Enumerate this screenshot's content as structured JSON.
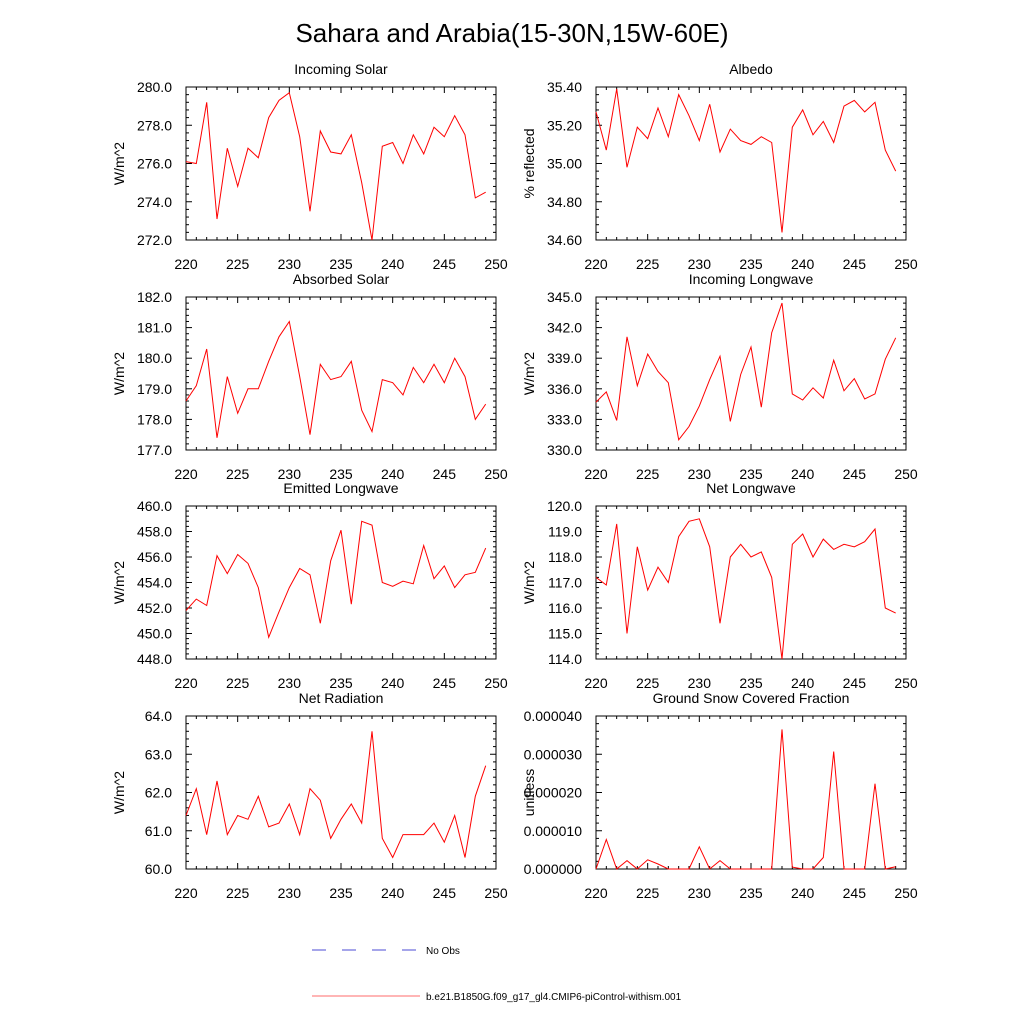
{
  "title": "Sahara and Arabia(15-30N,15W-60E)",
  "legend": [
    {
      "label": "No Obs",
      "color": "#4b4bd6",
      "dash": true
    },
    {
      "label": "b.e21.B1850G.f09_g17_gl4.CMIP6-piControl-withism.001",
      "color": "#ff3b3b",
      "dash": false
    }
  ],
  "chart_data": [
    {
      "type": "line",
      "title": "Incoming Solar",
      "ylabel": "W/m^2",
      "xlim": [
        220,
        250
      ],
      "ylim": [
        272,
        280
      ],
      "xticks": [
        "220",
        "225",
        "230",
        "235",
        "240",
        "245",
        "250"
      ],
      "yticks": [
        "272.0",
        "274.0",
        "276.0",
        "278.0",
        "280.0"
      ],
      "series": [
        {
          "color": "#ff0000",
          "x": [
            220,
            221,
            222,
            223,
            224,
            225,
            226,
            227,
            228,
            229,
            230,
            231,
            232,
            233,
            234,
            235,
            236,
            237,
            238,
            239,
            240,
            241,
            242,
            243,
            244,
            245,
            246,
            247,
            248,
            249
          ],
          "y": [
            276.1,
            276.0,
            279.2,
            273.1,
            276.8,
            274.8,
            276.8,
            276.3,
            278.4,
            279.3,
            279.7,
            277.4,
            273.5,
            277.7,
            276.6,
            276.5,
            277.5,
            275.0,
            272.0,
            276.9,
            277.1,
            276.0,
            277.5,
            276.5,
            277.9,
            277.4,
            278.5,
            277.5,
            274.2,
            274.5
          ]
        }
      ]
    },
    {
      "type": "line",
      "title": "Albedo",
      "ylabel": "% reflected",
      "xlim": [
        220,
        250
      ],
      "ylim": [
        34.6,
        35.4
      ],
      "xticks": [
        "220",
        "225",
        "230",
        "235",
        "240",
        "245",
        "250"
      ],
      "yticks": [
        "34.60",
        "34.80",
        "35.00",
        "35.20",
        "35.40"
      ],
      "series": [
        {
          "color": "#ff0000",
          "x": [
            220,
            221,
            222,
            223,
            224,
            225,
            226,
            227,
            228,
            229,
            230,
            231,
            232,
            233,
            234,
            235,
            236,
            237,
            238,
            239,
            240,
            241,
            242,
            243,
            244,
            245,
            246,
            247,
            248,
            249
          ],
          "y": [
            35.27,
            35.07,
            35.39,
            34.98,
            35.19,
            35.13,
            35.29,
            35.14,
            35.36,
            35.25,
            35.12,
            35.31,
            35.06,
            35.18,
            35.12,
            35.1,
            35.14,
            35.11,
            34.64,
            35.19,
            35.28,
            35.15,
            35.22,
            35.11,
            35.3,
            35.33,
            35.27,
            35.32,
            35.07,
            34.96
          ]
        }
      ]
    },
    {
      "type": "line",
      "title": "Absorbed Solar",
      "ylabel": "W/m^2",
      "xlim": [
        220,
        250
      ],
      "ylim": [
        177,
        182
      ],
      "xticks": [
        "220",
        "225",
        "230",
        "235",
        "240",
        "245",
        "250"
      ],
      "yticks": [
        "177.0",
        "178.0",
        "179.0",
        "180.0",
        "181.0",
        "182.0"
      ],
      "series": [
        {
          "color": "#ff0000",
          "x": [
            220,
            221,
            222,
            223,
            224,
            225,
            226,
            227,
            228,
            229,
            230,
            231,
            232,
            233,
            234,
            235,
            236,
            237,
            238,
            239,
            240,
            241,
            242,
            243,
            244,
            245,
            246,
            247,
            248,
            249
          ],
          "y": [
            178.6,
            179.1,
            180.3,
            177.4,
            179.4,
            178.2,
            179.0,
            179.0,
            179.9,
            180.7,
            181.2,
            179.4,
            177.5,
            179.8,
            179.3,
            179.4,
            179.9,
            178.3,
            177.6,
            179.3,
            179.2,
            178.8,
            179.7,
            179.2,
            179.8,
            179.2,
            180.0,
            179.4,
            178.0,
            178.5
          ]
        }
      ]
    },
    {
      "type": "line",
      "title": "Incoming Longwave",
      "ylabel": "W/m^2",
      "xlim": [
        220,
        250
      ],
      "ylim": [
        330,
        345
      ],
      "xticks": [
        "220",
        "225",
        "230",
        "235",
        "240",
        "245",
        "250"
      ],
      "yticks": [
        "330.0",
        "333.0",
        "336.0",
        "339.0",
        "342.0",
        "345.0"
      ],
      "series": [
        {
          "color": "#ff0000",
          "x": [
            220,
            221,
            222,
            223,
            224,
            225,
            226,
            227,
            228,
            229,
            230,
            231,
            232,
            233,
            234,
            235,
            236,
            237,
            238,
            239,
            240,
            241,
            242,
            243,
            244,
            245,
            246,
            247,
            248,
            249
          ],
          "y": [
            334.7,
            335.7,
            332.9,
            341.1,
            336.3,
            339.4,
            337.7,
            336.6,
            331.0,
            332.3,
            334.3,
            336.9,
            339.2,
            332.8,
            337.4,
            340.1,
            334.2,
            341.5,
            344.4,
            335.5,
            334.9,
            336.1,
            335.1,
            338.8,
            335.8,
            337.0,
            335.0,
            335.5,
            338.9,
            341.0
          ]
        }
      ]
    },
    {
      "type": "line",
      "title": "Emitted Longwave",
      "ylabel": "W/m^2",
      "xlim": [
        220,
        250
      ],
      "ylim": [
        448,
        460
      ],
      "xticks": [
        "220",
        "225",
        "230",
        "235",
        "240",
        "245",
        "250"
      ],
      "yticks": [
        "448.0",
        "450.0",
        "452.0",
        "454.0",
        "456.0",
        "458.0",
        "460.0"
      ],
      "series": [
        {
          "color": "#ff0000",
          "x": [
            220,
            221,
            222,
            223,
            224,
            225,
            226,
            227,
            228,
            229,
            230,
            231,
            232,
            233,
            234,
            235,
            236,
            237,
            238,
            239,
            240,
            241,
            242,
            243,
            244,
            245,
            246,
            247,
            248,
            249
          ],
          "y": [
            451.8,
            452.7,
            452.2,
            456.1,
            454.7,
            456.2,
            455.5,
            453.6,
            449.7,
            451.7,
            453.6,
            455.1,
            454.6,
            450.8,
            455.7,
            458.1,
            452.3,
            458.8,
            458.5,
            454.0,
            453.7,
            454.1,
            453.9,
            456.9,
            454.3,
            455.3,
            453.6,
            454.6,
            454.8,
            456.7
          ]
        }
      ]
    },
    {
      "type": "line",
      "title": "Net Longwave",
      "ylabel": "W/m^2",
      "xlim": [
        220,
        250
      ],
      "ylim": [
        114,
        120
      ],
      "xticks": [
        "220",
        "225",
        "230",
        "235",
        "240",
        "245",
        "250"
      ],
      "yticks": [
        "114.0",
        "115.0",
        "116.0",
        "117.0",
        "118.0",
        "119.0",
        "120.0"
      ],
      "series": [
        {
          "color": "#ff0000",
          "x": [
            220,
            221,
            222,
            223,
            224,
            225,
            226,
            227,
            228,
            229,
            230,
            231,
            232,
            233,
            234,
            235,
            236,
            237,
            238,
            239,
            240,
            241,
            242,
            243,
            244,
            245,
            246,
            247,
            248,
            249
          ],
          "y": [
            117.2,
            116.9,
            119.3,
            115.0,
            118.4,
            116.7,
            117.6,
            117.0,
            118.8,
            119.4,
            119.5,
            118.4,
            115.4,
            118.0,
            118.5,
            118.0,
            118.2,
            117.2,
            114.0,
            118.5,
            118.9,
            118.0,
            118.7,
            118.3,
            118.5,
            118.4,
            118.6,
            119.1,
            116.0,
            115.8
          ]
        }
      ]
    },
    {
      "type": "line",
      "title": "Net Radiation",
      "ylabel": "W/m^2",
      "xlim": [
        220,
        250
      ],
      "ylim": [
        60,
        64
      ],
      "xticks": [
        "220",
        "225",
        "230",
        "235",
        "240",
        "245",
        "250"
      ],
      "yticks": [
        "60.0",
        "61.0",
        "62.0",
        "63.0",
        "64.0"
      ],
      "series": [
        {
          "color": "#ff0000",
          "x": [
            220,
            221,
            222,
            223,
            224,
            225,
            226,
            227,
            228,
            229,
            230,
            231,
            232,
            233,
            234,
            235,
            236,
            237,
            238,
            239,
            240,
            241,
            242,
            243,
            244,
            245,
            246,
            247,
            248,
            249
          ],
          "y": [
            61.4,
            62.1,
            60.9,
            62.3,
            60.9,
            61.4,
            61.3,
            61.9,
            61.1,
            61.2,
            61.7,
            60.9,
            62.1,
            61.8,
            60.8,
            61.3,
            61.7,
            61.2,
            63.6,
            60.8,
            60.3,
            60.9,
            60.9,
            60.9,
            61.2,
            60.7,
            61.4,
            60.3,
            61.9,
            62.7
          ]
        }
      ]
    },
    {
      "type": "line",
      "title": "Ground Snow Covered Fraction",
      "ylabel": "unitless",
      "xlim": [
        220,
        250
      ],
      "ylim": [
        0,
        4e-05
      ],
      "xticks": [
        "220",
        "225",
        "230",
        "235",
        "240",
        "245",
        "250"
      ],
      "yticks": [
        "0.000000",
        "0.000010",
        "0.000020",
        "0.000030",
        "0.000040"
      ],
      "series": [
        {
          "color": "#ff0000",
          "x": [
            220,
            221,
            222,
            223,
            224,
            225,
            226,
            227,
            228,
            229,
            230,
            231,
            232,
            233,
            234,
            235,
            236,
            237,
            238,
            239,
            240,
            241,
            242,
            243,
            244,
            245,
            246,
            247,
            248,
            249
          ],
          "y": [
            0,
            7.7e-06,
            0,
            2.2e-06,
            0,
            2.4e-06,
            1.3e-06,
            0,
            0,
            0,
            5.8e-06,
            0,
            2.2e-06,
            0,
            0,
            0,
            0,
            0,
            3.65e-05,
            5e-07,
            0,
            0,
            3e-06,
            3.07e-05,
            0,
            0,
            0,
            2.23e-05,
            0,
            6e-07
          ]
        }
      ]
    }
  ]
}
